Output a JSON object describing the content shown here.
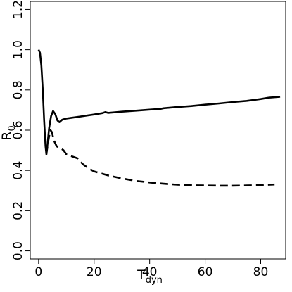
{
  "chart_data": {
    "type": "line",
    "title": "",
    "xlabel": {
      "main": "T",
      "sub": "dyn"
    },
    "ylabel": {
      "main": "R",
      "sub": "0"
    },
    "xlim": [
      -3,
      89
    ],
    "ylim": [
      -0.04,
      1.24
    ],
    "x_ticks": [
      0,
      20,
      40,
      60,
      80
    ],
    "y_ticks": [
      0.0,
      0.2,
      0.4,
      0.6,
      0.8,
      1.0,
      1.2
    ],
    "y_tick_labels": [
      "0.0",
      "0.2",
      "0.4",
      "0.6",
      "0.8",
      "1.0",
      "1.2"
    ],
    "grid": false,
    "legend": "none",
    "series": [
      {
        "style": "solid",
        "color": "#000000",
        "points": [
          [
            0,
            1.0
          ],
          [
            0.5,
            0.985
          ],
          [
            1.0,
            0.92
          ],
          [
            1.5,
            0.8
          ],
          [
            2.0,
            0.65
          ],
          [
            2.5,
            0.52
          ],
          [
            2.8,
            0.48
          ],
          [
            3.2,
            0.53
          ],
          [
            3.8,
            0.61
          ],
          [
            4.5,
            0.67
          ],
          [
            5.2,
            0.695
          ],
          [
            6.0,
            0.68
          ],
          [
            6.8,
            0.648
          ],
          [
            7.5,
            0.64
          ],
          [
            8.5,
            0.652
          ],
          [
            10,
            0.658
          ],
          [
            12,
            0.662
          ],
          [
            15,
            0.668
          ],
          [
            18,
            0.674
          ],
          [
            20,
            0.678
          ],
          [
            23,
            0.685
          ],
          [
            24,
            0.69
          ],
          [
            25,
            0.686
          ],
          [
            30,
            0.692
          ],
          [
            35,
            0.697
          ],
          [
            40,
            0.702
          ],
          [
            44,
            0.706
          ],
          [
            45,
            0.709
          ],
          [
            50,
            0.715
          ],
          [
            55,
            0.72
          ],
          [
            60,
            0.727
          ],
          [
            65,
            0.733
          ],
          [
            70,
            0.74
          ],
          [
            75,
            0.746
          ],
          [
            80,
            0.755
          ],
          [
            83,
            0.762
          ],
          [
            85,
            0.764
          ],
          [
            87,
            0.766
          ]
        ]
      },
      {
        "style": "dashed",
        "color": "#000000",
        "points": [
          [
            2.8,
            0.48
          ],
          [
            3.3,
            0.53
          ],
          [
            3.8,
            0.57
          ],
          [
            4.3,
            0.6
          ],
          [
            4.8,
            0.59
          ],
          [
            5.5,
            0.55
          ],
          [
            6.5,
            0.52
          ],
          [
            8,
            0.51
          ],
          [
            9,
            0.5
          ],
          [
            10,
            0.48
          ],
          [
            12,
            0.47
          ],
          [
            14,
            0.46
          ],
          [
            16,
            0.43
          ],
          [
            18,
            0.41
          ],
          [
            20,
            0.395
          ],
          [
            25,
            0.375
          ],
          [
            30,
            0.36
          ],
          [
            35,
            0.348
          ],
          [
            40,
            0.34
          ],
          [
            45,
            0.334
          ],
          [
            50,
            0.329
          ],
          [
            55,
            0.326
          ],
          [
            60,
            0.325
          ],
          [
            65,
            0.324
          ],
          [
            70,
            0.324
          ],
          [
            75,
            0.325
          ],
          [
            80,
            0.327
          ],
          [
            85,
            0.33
          ]
        ]
      }
    ]
  }
}
